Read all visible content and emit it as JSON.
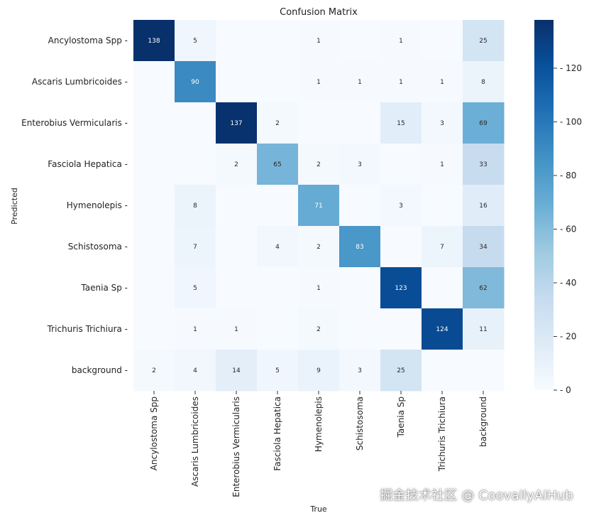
{
  "chart_data": {
    "type": "heatmap",
    "title": "Confusion Matrix",
    "xlabel": "True",
    "ylabel": "Predicted",
    "rows": [
      "Ancylostoma Spp",
      "Ascaris Lumbricoides",
      "Enterobius Vermicularis",
      "Fasciola Hepatica",
      "Hymenolepis",
      "Schistosoma",
      "Taenia Sp",
      "Trichuris Trichiura",
      "background"
    ],
    "columns": [
      "Ancylostoma Spp",
      "Ascaris Lumbricoides",
      "Enterobius Vermicularis",
      "Fasciola Hepatica",
      "Hymenolepis",
      "Schistosoma",
      "Taenia Sp",
      "Trichuris Trichiura",
      "background"
    ],
    "values": [
      [
        138,
        5,
        null,
        null,
        1,
        null,
        1,
        null,
        25
      ],
      [
        null,
        90,
        null,
        null,
        1,
        1,
        1,
        1,
        8
      ],
      [
        null,
        null,
        137,
        2,
        null,
        null,
        15,
        3,
        69
      ],
      [
        null,
        null,
        2,
        65,
        2,
        3,
        null,
        1,
        33
      ],
      [
        null,
        8,
        null,
        null,
        71,
        null,
        3,
        null,
        16
      ],
      [
        null,
        7,
        null,
        4,
        2,
        83,
        null,
        7,
        34
      ],
      [
        null,
        5,
        null,
        null,
        1,
        null,
        123,
        null,
        62
      ],
      [
        null,
        1,
        1,
        null,
        2,
        null,
        null,
        124,
        11
      ],
      [
        2,
        4,
        14,
        5,
        9,
        3,
        25,
        null,
        null
      ]
    ],
    "colormap": "Blues",
    "vmin": 0,
    "vmax": 138,
    "colorbar_ticks": [
      0,
      20,
      40,
      60,
      80,
      100,
      120
    ]
  },
  "watermark": "掘金技术社区 @ CoovallyAIHub"
}
